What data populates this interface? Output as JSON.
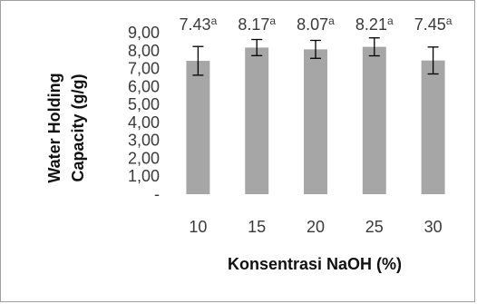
{
  "chart_data": {
    "type": "bar",
    "title": "",
    "xlabel": "Konsentrasi NaOH (%)",
    "ylabel_lines": [
      "Water Holding",
      "Capacity (g/g)"
    ],
    "categories": [
      "10",
      "15",
      "20",
      "25",
      "30"
    ],
    "values": [
      7.43,
      8.17,
      8.07,
      8.21,
      7.45
    ],
    "errors": [
      0.8,
      0.45,
      0.5,
      0.5,
      0.75
    ],
    "data_labels": [
      "7.43",
      "8.17",
      "8.07",
      "8.21",
      "7.45"
    ],
    "superscripts": [
      "a",
      "a",
      "a",
      "a",
      "a"
    ],
    "ylim": [
      0,
      9
    ],
    "ytick_labels": [
      "-",
      "1,00",
      "2,00",
      "3,00",
      "4,00",
      "5,00",
      "6,00",
      "7,00",
      "8,00",
      "9,00"
    ],
    "grid": false,
    "legend": "none",
    "bar_color": "#a6a6a6",
    "error_color": "#000000",
    "text_color": "#3a3a3a"
  }
}
